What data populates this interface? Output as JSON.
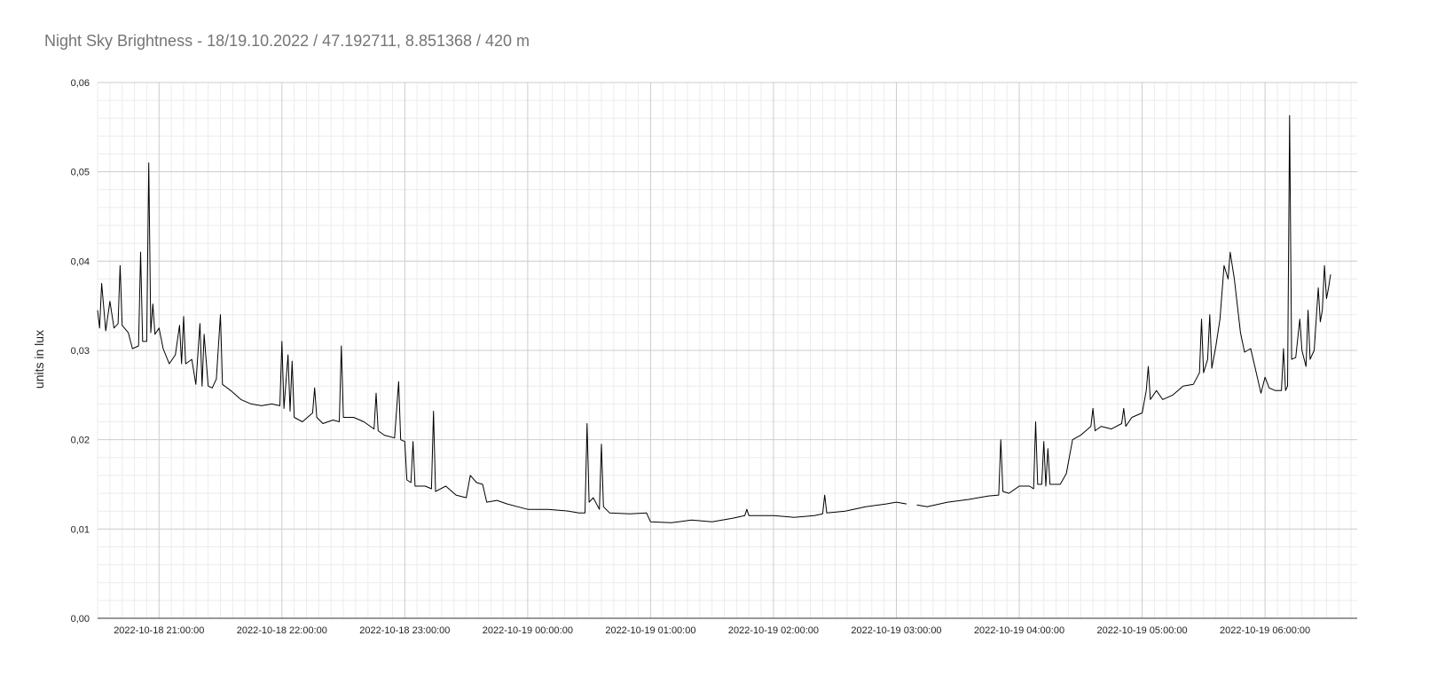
{
  "chart_data": {
    "type": "line",
    "title": "Night Sky Brightness - 18/19.10.2022 / 47.192711, 8.851368 / 420 m",
    "xlabel": "",
    "ylabel": "units in lux",
    "x_range": [
      "2022-10-18 20:30:00",
      "2022-10-19 06:45:00"
    ],
    "ylim": [
      0,
      0.06
    ],
    "y_ticks": [
      "0,00",
      "0,01",
      "0,02",
      "0,03",
      "0,04",
      "0,05",
      "0,06"
    ],
    "x_ticks": [
      "2022-10-18 21:00:00",
      "2022-10-18 22:00:00",
      "2022-10-18 23:00:00",
      "2022-10-19 00:00:00",
      "2022-10-19 01:00:00",
      "2022-10-19 02:00:00",
      "2022-10-19 03:00:00",
      "2022-10-19 04:00:00",
      "2022-10-19 05:00:00",
      "2022-10-19 06:00:00"
    ],
    "grid": true,
    "legend": "none",
    "line_color": "#000000",
    "series": [
      {
        "segments": [
          [
            [
              "2022-10-18 20:30:00",
              0.0345
            ],
            [
              "2022-10-18 20:31:00",
              0.0325
            ],
            [
              "2022-10-18 20:32:00",
              0.0375
            ],
            [
              "2022-10-18 20:34:00",
              0.0322
            ],
            [
              "2022-10-18 20:36:00",
              0.0355
            ],
            [
              "2022-10-18 20:38:00",
              0.0325
            ],
            [
              "2022-10-18 20:40:00",
              0.033
            ],
            [
              "2022-10-18 20:41:00",
              0.0395
            ],
            [
              "2022-10-18 20:42:00",
              0.0328
            ],
            [
              "2022-10-18 20:45:00",
              0.032
            ],
            [
              "2022-10-18 20:47:00",
              0.0302
            ],
            [
              "2022-10-18 20:50:00",
              0.0305
            ],
            [
              "2022-10-18 20:51:00",
              0.041
            ],
            [
              "2022-10-18 20:52:00",
              0.031
            ],
            [
              "2022-10-18 20:54:00",
              0.031
            ],
            [
              "2022-10-18 20:55:00",
              0.051
            ],
            [
              "2022-10-18 20:56:00",
              0.032
            ],
            [
              "2022-10-18 20:57:00",
              0.0352
            ],
            [
              "2022-10-18 20:58:00",
              0.0318
            ],
            [
              "2022-10-18 21:00:00",
              0.0325
            ],
            [
              "2022-10-18 21:02:00",
              0.0302
            ],
            [
              "2022-10-18 21:05:00",
              0.0285
            ],
            [
              "2022-10-18 21:08:00",
              0.0295
            ],
            [
              "2022-10-18 21:10:00",
              0.0328
            ],
            [
              "2022-10-18 21:11:00",
              0.0285
            ],
            [
              "2022-10-18 21:12:00",
              0.0338
            ],
            [
              "2022-10-18 21:13:00",
              0.0285
            ],
            [
              "2022-10-18 21:16:00",
              0.029
            ],
            [
              "2022-10-18 21:18:00",
              0.0262
            ],
            [
              "2022-10-18 21:20:00",
              0.033
            ],
            [
              "2022-10-18 21:21:00",
              0.026
            ],
            [
              "2022-10-18 21:22:00",
              0.0318
            ],
            [
              "2022-10-18 21:24:00",
              0.026
            ],
            [
              "2022-10-18 21:26:00",
              0.0258
            ],
            [
              "2022-10-18 21:28:00",
              0.0268
            ],
            [
              "2022-10-18 21:30:00",
              0.034
            ],
            [
              "2022-10-18 21:31:00",
              0.0262
            ],
            [
              "2022-10-18 21:35:00",
              0.0255
            ],
            [
              "2022-10-18 21:40:00",
              0.0245
            ],
            [
              "2022-10-18 21:45:00",
              0.024
            ],
            [
              "2022-10-18 21:50:00",
              0.0238
            ],
            [
              "2022-10-18 21:55:00",
              0.024
            ],
            [
              "2022-10-18 21:59:00",
              0.0238
            ],
            [
              "2022-10-18 22:00:00",
              0.031
            ],
            [
              "2022-10-18 22:01:00",
              0.0235
            ],
            [
              "2022-10-18 22:03:00",
              0.0295
            ],
            [
              "2022-10-18 22:04:00",
              0.0232
            ],
            [
              "2022-10-18 22:05:00",
              0.0288
            ],
            [
              "2022-10-18 22:06:00",
              0.0225
            ],
            [
              "2022-10-18 22:10:00",
              0.022
            ],
            [
              "2022-10-18 22:15:00",
              0.023
            ],
            [
              "2022-10-18 22:16:00",
              0.0258
            ],
            [
              "2022-10-18 22:17:00",
              0.0225
            ],
            [
              "2022-10-18 22:20:00",
              0.0218
            ],
            [
              "2022-10-18 22:25:00",
              0.0222
            ],
            [
              "2022-10-18 22:28:00",
              0.022
            ],
            [
              "2022-10-18 22:29:00",
              0.0305
            ],
            [
              "2022-10-18 22:30:00",
              0.0225
            ],
            [
              "2022-10-18 22:35:00",
              0.0225
            ],
            [
              "2022-10-18 22:40:00",
              0.022
            ],
            [
              "2022-10-18 22:45:00",
              0.0212
            ],
            [
              "2022-10-18 22:46:00",
              0.0252
            ],
            [
              "2022-10-18 22:47:00",
              0.021
            ],
            [
              "2022-10-18 22:50:00",
              0.0205
            ],
            [
              "2022-10-18 22:55:00",
              0.0202
            ],
            [
              "2022-10-18 22:57:00",
              0.0265
            ],
            [
              "2022-10-18 22:58:00",
              0.02
            ],
            [
              "2022-10-18 23:00:00",
              0.0198
            ],
            [
              "2022-10-18 23:01:00",
              0.0155
            ],
            [
              "2022-10-18 23:03:00",
              0.0152
            ],
            [
              "2022-10-18 23:04:00",
              0.0198
            ],
            [
              "2022-10-18 23:05:00",
              0.0148
            ],
            [
              "2022-10-18 23:10:00",
              0.0148
            ],
            [
              "2022-10-18 23:13:00",
              0.0145
            ],
            [
              "2022-10-18 23:14:00",
              0.0232
            ],
            [
              "2022-10-18 23:15:00",
              0.0142
            ],
            [
              "2022-10-18 23:20:00",
              0.0148
            ],
            [
              "2022-10-18 23:25:00",
              0.0138
            ],
            [
              "2022-10-18 23:30:00",
              0.0135
            ],
            [
              "2022-10-18 23:32:00",
              0.016
            ],
            [
              "2022-10-18 23:35:00",
              0.0152
            ],
            [
              "2022-10-18 23:38:00",
              0.015
            ],
            [
              "2022-10-18 23:40:00",
              0.013
            ],
            [
              "2022-10-18 23:45:00",
              0.0132
            ],
            [
              "2022-10-18 23:50:00",
              0.0128
            ],
            [
              "2022-10-18 23:55:00",
              0.0125
            ],
            [
              "2022-10-19 00:00:00",
              0.0122
            ],
            [
              "2022-10-19 00:10:00",
              0.0122
            ],
            [
              "2022-10-19 00:20:00",
              0.012
            ],
            [
              "2022-10-19 00:25:00",
              0.0118
            ],
            [
              "2022-10-19 00:28:00",
              0.0118
            ],
            [
              "2022-10-19 00:29:00",
              0.0218
            ],
            [
              "2022-10-19 00:30:00",
              0.013
            ],
            [
              "2022-10-19 00:32:00",
              0.0135
            ],
            [
              "2022-10-19 00:35:00",
              0.0122
            ],
            [
              "2022-10-19 00:36:00",
              0.0195
            ],
            [
              "2022-10-19 00:37:00",
              0.0125
            ],
            [
              "2022-10-19 00:40:00",
              0.0118
            ],
            [
              "2022-10-19 00:50:00",
              0.0117
            ],
            [
              "2022-10-19 00:58:00",
              0.0118
            ],
            [
              "2022-10-19 01:00:00",
              0.0108
            ],
            [
              "2022-10-19 01:10:00",
              0.0107
            ],
            [
              "2022-10-19 01:20:00",
              0.011
            ],
            [
              "2022-10-19 01:30:00",
              0.0108
            ],
            [
              "2022-10-19 01:40:00",
              0.0112
            ],
            [
              "2022-10-19 01:46:00",
              0.0115
            ],
            [
              "2022-10-19 01:47:00",
              0.0122
            ],
            [
              "2022-10-19 01:48:00",
              0.0115
            ],
            [
              "2022-10-19 02:00:00",
              0.0115
            ],
            [
              "2022-10-19 02:10:00",
              0.0113
            ],
            [
              "2022-10-19 02:20:00",
              0.0115
            ],
            [
              "2022-10-19 02:24:00",
              0.0117
            ],
            [
              "2022-10-19 02:25:00",
              0.0138
            ],
            [
              "2022-10-19 02:26:00",
              0.0118
            ],
            [
              "2022-10-19 02:35:00",
              0.012
            ],
            [
              "2022-10-19 02:45:00",
              0.0125
            ],
            [
              "2022-10-19 02:55:00",
              0.0128
            ],
            [
              "2022-10-19 03:00:00",
              0.013
            ],
            [
              "2022-10-19 03:05:00",
              0.0128
            ]
          ],
          [
            [
              "2022-10-19 03:10:00",
              0.0127
            ],
            [
              "2022-10-19 03:15:00",
              0.0125
            ],
            [
              "2022-10-19 03:25:00",
              0.013
            ],
            [
              "2022-10-19 03:35:00",
              0.0133
            ],
            [
              "2022-10-19 03:45:00",
              0.0137
            ],
            [
              "2022-10-19 03:50:00",
              0.0138
            ],
            [
              "2022-10-19 03:51:00",
              0.02
            ],
            [
              "2022-10-19 03:52:00",
              0.0142
            ],
            [
              "2022-10-19 03:55:00",
              0.014
            ],
            [
              "2022-10-19 04:00:00",
              0.0148
            ],
            [
              "2022-10-19 04:05:00",
              0.0148
            ],
            [
              "2022-10-19 04:07:00",
              0.0145
            ],
            [
              "2022-10-19 04:08:00",
              0.022
            ],
            [
              "2022-10-19 04:09:00",
              0.015
            ],
            [
              "2022-10-19 04:11:00",
              0.015
            ],
            [
              "2022-10-19 04:12:00",
              0.0198
            ],
            [
              "2022-10-19 04:13:00",
              0.0148
            ],
            [
              "2022-10-19 04:14:00",
              0.019
            ],
            [
              "2022-10-19 04:15:00",
              0.015
            ],
            [
              "2022-10-19 04:20:00",
              0.015
            ],
            [
              "2022-10-19 04:23:00",
              0.0162
            ],
            [
              "2022-10-19 04:26:00",
              0.02
            ],
            [
              "2022-10-19 04:30:00",
              0.0205
            ],
            [
              "2022-10-19 04:35:00",
              0.0215
            ],
            [
              "2022-10-19 04:36:00",
              0.0235
            ],
            [
              "2022-10-19 04:37:00",
              0.021
            ],
            [
              "2022-10-19 04:40:00",
              0.0215
            ],
            [
              "2022-10-19 04:45:00",
              0.0212
            ],
            [
              "2022-10-19 04:50:00",
              0.0218
            ],
            [
              "2022-10-19 04:51:00",
              0.0235
            ],
            [
              "2022-10-19 04:52:00",
              0.0215
            ],
            [
              "2022-10-19 04:55:00",
              0.0225
            ],
            [
              "2022-10-19 05:00:00",
              0.023
            ],
            [
              "2022-10-19 05:02:00",
              0.0255
            ],
            [
              "2022-10-19 05:03:00",
              0.0282
            ],
            [
              "2022-10-19 05:04:00",
              0.0245
            ],
            [
              "2022-10-19 05:07:00",
              0.0255
            ],
            [
              "2022-10-19 05:10:00",
              0.0245
            ],
            [
              "2022-10-19 05:15:00",
              0.025
            ],
            [
              "2022-10-19 05:20:00",
              0.026
            ],
            [
              "2022-10-19 05:25:00",
              0.0262
            ],
            [
              "2022-10-19 05:28:00",
              0.0275
            ],
            [
              "2022-10-19 05:29:00",
              0.0335
            ],
            [
              "2022-10-19 05:30:00",
              0.0275
            ],
            [
              "2022-10-19 05:32:00",
              0.029
            ],
            [
              "2022-10-19 05:33:00",
              0.034
            ],
            [
              "2022-10-19 05:34:00",
              0.028
            ],
            [
              "2022-10-19 05:36:00",
              0.0305
            ],
            [
              "2022-10-19 05:38:00",
              0.0335
            ],
            [
              "2022-10-19 05:40:00",
              0.0395
            ],
            [
              "2022-10-19 05:42:00",
              0.038
            ],
            [
              "2022-10-19 05:43:00",
              0.041
            ],
            [
              "2022-10-19 05:45:00",
              0.038
            ],
            [
              "2022-10-19 05:48:00",
              0.032
            ],
            [
              "2022-10-19 05:50:00",
              0.0298
            ],
            [
              "2022-10-19 05:53:00",
              0.0302
            ],
            [
              "2022-10-19 05:55:00",
              0.0282
            ],
            [
              "2022-10-19 05:58:00",
              0.0252
            ],
            [
              "2022-10-19 06:00:00",
              0.027
            ],
            [
              "2022-10-19 06:02:00",
              0.0258
            ],
            [
              "2022-10-19 06:05:00",
              0.0255
            ],
            [
              "2022-10-19 06:08:00",
              0.0255
            ],
            [
              "2022-10-19 06:09:00",
              0.0302
            ],
            [
              "2022-10-19 06:10:00",
              0.0255
            ],
            [
              "2022-10-19 06:11:00",
              0.026
            ],
            [
              "2022-10-19 06:12:00",
              0.0563
            ],
            [
              "2022-10-19 06:13:00",
              0.029
            ],
            [
              "2022-10-19 06:15:00",
              0.0292
            ],
            [
              "2022-10-19 06:17:00",
              0.0335
            ],
            [
              "2022-10-19 06:18:00",
              0.03
            ],
            [
              "2022-10-19 06:20:00",
              0.0282
            ],
            [
              "2022-10-19 06:21:00",
              0.0345
            ],
            [
              "2022-10-19 06:22:00",
              0.029
            ],
            [
              "2022-10-19 06:24:00",
              0.03
            ],
            [
              "2022-10-19 06:26:00",
              0.037
            ],
            [
              "2022-10-19 06:27:00",
              0.0332
            ],
            [
              "2022-10-19 06:28:00",
              0.0345
            ],
            [
              "2022-10-19 06:29:00",
              0.0395
            ],
            [
              "2022-10-19 06:30:00",
              0.0358
            ],
            [
              "2022-10-19 06:31:00",
              0.037
            ],
            [
              "2022-10-19 06:32:00",
              0.0385
            ]
          ]
        ]
      }
    ]
  }
}
